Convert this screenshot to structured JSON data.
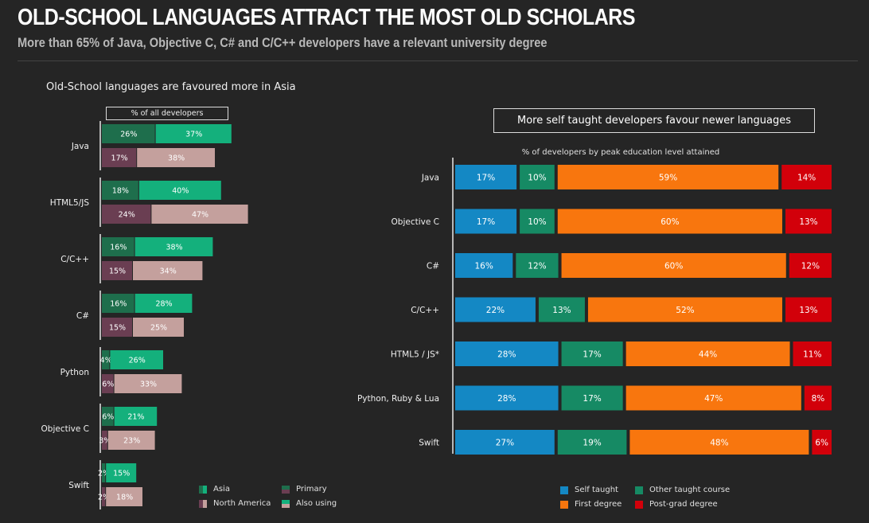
{
  "header": {
    "title": "OLD-SCHOOL LANGUAGES ATTRACT THE MOST OLD SCHOLARS",
    "subtitle": "More than 65% of Java, Objective C, C# and C/C++ developers have a relevant university degree"
  },
  "colors": {
    "asia_primary": "#1e6e4c",
    "asia_also": "#14b07c",
    "na_primary": "#6a3e52",
    "na_also": "#c4a09d",
    "self_taught": "#1488c4",
    "other_course": "#168a64",
    "first_degree": "#f8760e",
    "post_grad": "#d2000a"
  },
  "left_chart": {
    "heading": "Old-School languages are favoured more in Asia",
    "axis_label": "% of all developers",
    "legend": {
      "asia": "Asia",
      "north_america": "North America",
      "primary": "Primary",
      "also_using": "Also using"
    }
  },
  "right_chart": {
    "heading": "More self taught developers favour newer languages",
    "subheading": "% of developers by peak education level attained",
    "legend": {
      "self_taught": "Self taught",
      "other_course": "Other taught course",
      "first_degree": "First degree",
      "post_grad": "Post-grad degree"
    }
  },
  "chart_data": [
    {
      "type": "bar",
      "orientation": "horizontal",
      "stacked": true,
      "title": "Old-School languages are favoured more in Asia",
      "xlabel": "% of all developers",
      "categories": [
        "Java",
        "HTML5/JS",
        "C/C++",
        "C#",
        "Python",
        "Objective C",
        "Swift"
      ],
      "groups": [
        "Asia",
        "North America"
      ],
      "series": [
        {
          "name": "Asia - Primary",
          "values": [
            26,
            18,
            16,
            16,
            4,
            6,
            2
          ]
        },
        {
          "name": "Asia - Also using",
          "values": [
            37,
            40,
            38,
            28,
            26,
            21,
            15
          ]
        },
        {
          "name": "North America - Primary",
          "values": [
            17,
            24,
            15,
            15,
            6,
            3,
            2
          ]
        },
        {
          "name": "North America - Also using",
          "values": [
            38,
            47,
            34,
            25,
            33,
            23,
            18
          ]
        }
      ]
    },
    {
      "type": "bar",
      "orientation": "horizontal",
      "stacked": true,
      "title": "More self taught developers favour newer languages",
      "subtitle": "% of developers by peak education level attained",
      "categories": [
        "Java",
        "Objective C",
        "C#",
        "C/C++",
        "HTML5 / JS*",
        "Python, Ruby & Lua",
        "Swift"
      ],
      "series": [
        {
          "name": "Self taught",
          "values": [
            17,
            17,
            16,
            22,
            28,
            28,
            27
          ]
        },
        {
          "name": "Other taught course",
          "values": [
            10,
            10,
            12,
            13,
            17,
            17,
            19
          ]
        },
        {
          "name": "First degree",
          "values": [
            59,
            60,
            60,
            52,
            44,
            47,
            48
          ]
        },
        {
          "name": "Post-grad degree",
          "values": [
            14,
            13,
            12,
            13,
            11,
            8,
            6
          ]
        }
      ],
      "xlim": [
        0,
        100
      ]
    }
  ]
}
